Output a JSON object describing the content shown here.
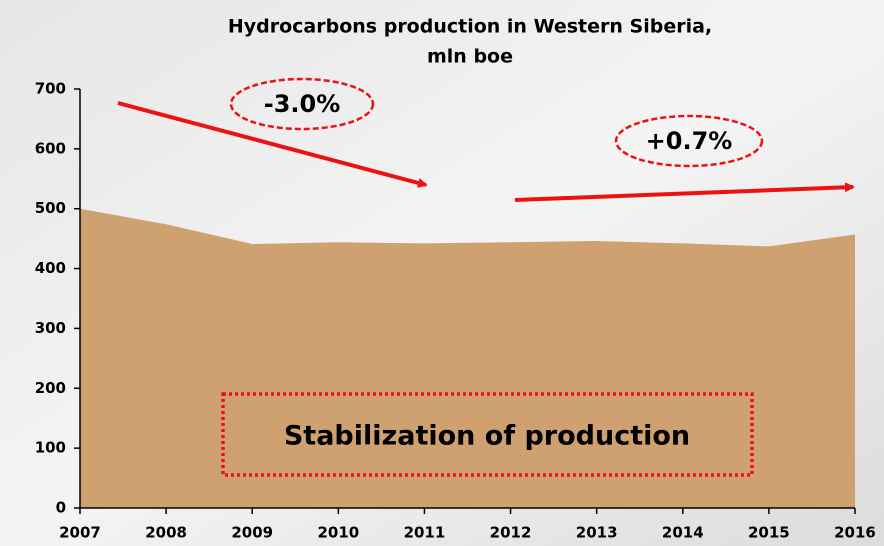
{
  "chart_data": {
    "type": "area",
    "title": [
      "Hydrocarbons production in Western Siberia,",
      "mln boe"
    ],
    "x": [
      2007,
      2008,
      2009,
      2010,
      2011,
      2012,
      2013,
      2014,
      2015,
      2016
    ],
    "values": [
      500,
      474,
      441,
      444,
      442,
      444,
      446,
      442,
      437,
      457
    ],
    "color": "#cfa070",
    "xlim": [
      2007,
      2016
    ],
    "xticks": [
      2007,
      2008,
      2009,
      2010,
      2011,
      2012,
      2013,
      2014,
      2015,
      2016
    ],
    "ylim": [
      0,
      700
    ],
    "yticks": [
      0,
      100,
      200,
      300,
      400,
      500,
      600,
      700
    ],
    "annotations": [
      "-3.0%",
      "+0.7%",
      "Stabilization of production"
    ]
  }
}
